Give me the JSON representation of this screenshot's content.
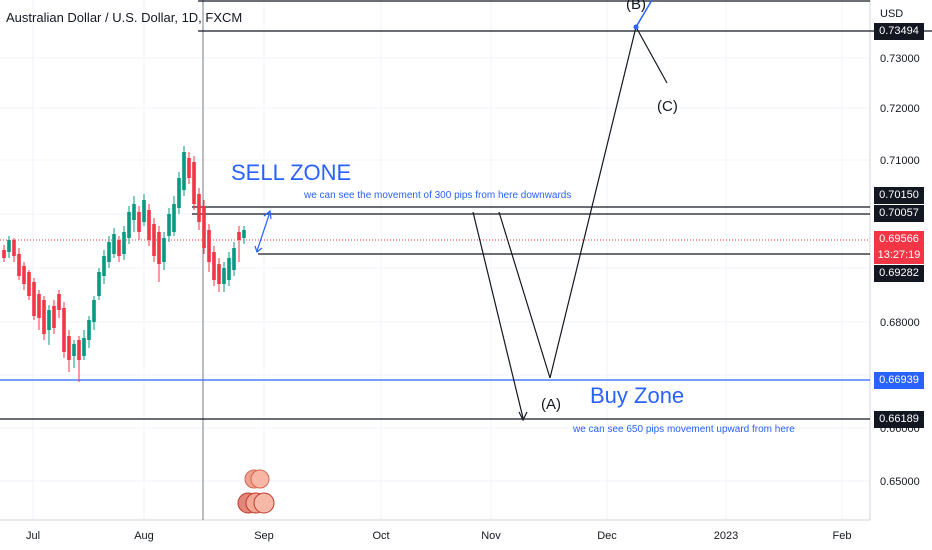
{
  "header": {
    "title": "Australian Dollar / U.S. Dollar, 1D, FXCM",
    "currency": "USD"
  },
  "price_axis": {
    "ticks": [
      "0.73000",
      "0.72000",
      "0.71000",
      "0.68000",
      "0.66000",
      "0.65000"
    ],
    "tags": {
      "top": "0.73494",
      "sell_high": "0.70150",
      "sell_low": "0.70057",
      "current": "0.69566",
      "countdown": "13:27:19",
      "support": "0.69282",
      "blue_line": "0.66939",
      "buy_low": "0.66189"
    }
  },
  "time_axis": {
    "labels": [
      "Jul",
      "Aug",
      "Sep",
      "Oct",
      "Nov",
      "Dec",
      "2023",
      "Feb"
    ]
  },
  "annotations": {
    "sell_zone": "SELL ZONE",
    "sell_note": "we can see the movement of 300 pips from here downwards",
    "buy_zone": "Buy Zone",
    "buy_note": "we can see 650 pips movement upward from here",
    "wave_a": "(A)",
    "wave_b": "(B)",
    "wave_c": "(C)"
  },
  "colors": {
    "up": "#089981",
    "down": "#f23645",
    "accent": "#2962ff",
    "line": "#131722"
  },
  "chart_data": {
    "type": "candlestick",
    "title": "Australian Dollar / U.S. Dollar, 1D, FXCM",
    "x_labels": [
      "Jul",
      "Aug",
      "Sep",
      "Oct",
      "Nov",
      "Dec",
      "2023",
      "Feb"
    ],
    "y_ticks": [
      0.73,
      0.72,
      0.71,
      0.68,
      0.66,
      0.65
    ],
    "current_price": 0.69566,
    "levels": [
      0.73494,
      0.7015,
      0.70057,
      0.69282,
      0.66939,
      0.66189
    ]
  }
}
